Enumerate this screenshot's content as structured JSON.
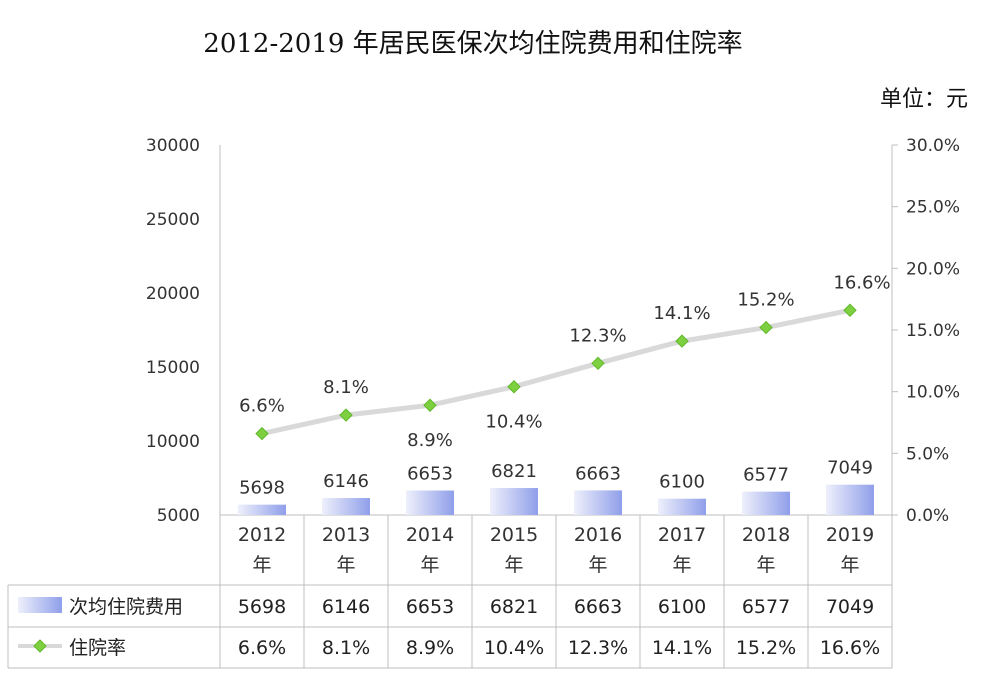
{
  "chart_data": {
    "type": "bar+line",
    "title": "2012-2019 年居民医保次均住院费用和住院率",
    "unit_label": "单位：元",
    "categories": [
      "2012\n年",
      "2013\n年",
      "2014\n年",
      "2015\n年",
      "2016\n年",
      "2017\n年",
      "2018\n年",
      "2019\n年"
    ],
    "y_left": {
      "min": 5000,
      "max": 30000,
      "ticks": [
        "5000",
        "10000",
        "15000",
        "20000",
        "25000",
        "30000"
      ]
    },
    "y_right": {
      "min": 0,
      "max": 30,
      "ticks": [
        "0.0%",
        "5.0%",
        "10.0%",
        "15.0%",
        "20.0%",
        "25.0%",
        "30.0%"
      ]
    },
    "series": [
      {
        "name": "次均住院费用",
        "kind": "bar",
        "axis": "left",
        "values": [
          5698,
          6146,
          6653,
          6821,
          6663,
          6100,
          6577,
          7049
        ],
        "labels": [
          "5698",
          "6146",
          "6653",
          "6821",
          "6663",
          "6100",
          "6577",
          "7049"
        ],
        "color_light": "#eef0fb",
        "color_dark": "#8f9fea"
      },
      {
        "name": "住院率",
        "kind": "line",
        "axis": "right",
        "values": [
          6.6,
          8.1,
          8.9,
          10.4,
          12.3,
          14.1,
          15.2,
          16.6
        ],
        "labels": [
          "6.6%",
          "8.1%",
          "8.9%",
          "10.4%",
          "12.3%",
          "14.1%",
          "15.2%",
          "16.6%"
        ],
        "line_color": "#d9d9d9",
        "marker_color": "#7ed040"
      }
    ],
    "data_table": true,
    "legend_position": "data-table"
  }
}
